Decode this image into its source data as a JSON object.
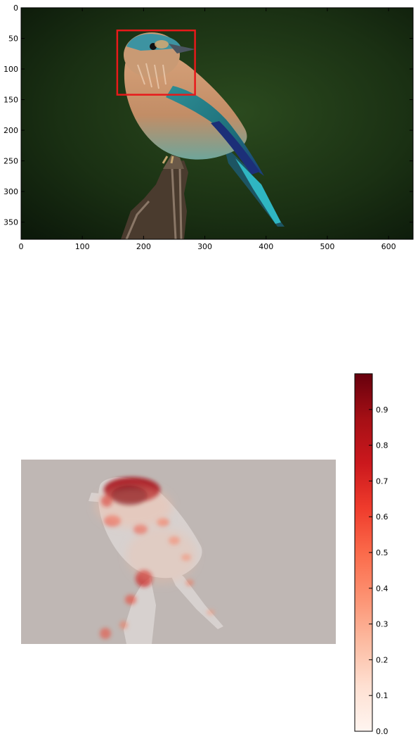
{
  "chart_data": [
    {
      "type": "image",
      "title": "",
      "xlabel": "",
      "ylabel": "",
      "xlim": [
        0,
        640
      ],
      "ylim": [
        378,
        0
      ],
      "xticks": [
        0,
        100,
        200,
        300,
        400,
        500,
        600
      ],
      "yticks": [
        0,
        50,
        100,
        150,
        200,
        250,
        300,
        350
      ],
      "grid": false,
      "annotations": [
        {
          "type": "rectangle",
          "x0": 157,
          "y0": 37,
          "x1": 284,
          "y1": 142,
          "color": "#e8191a"
        }
      ]
    },
    {
      "type": "heatmap",
      "title": "",
      "axes_visible": false,
      "colormap": "Reds",
      "colorbar": {
        "range": [
          0,
          1
        ],
        "ticks": [
          "0.0",
          "0.1",
          "0.2",
          "0.3",
          "0.4",
          "0.5",
          "0.6",
          "0.7",
          "0.8",
          "0.9"
        ]
      }
    }
  ]
}
